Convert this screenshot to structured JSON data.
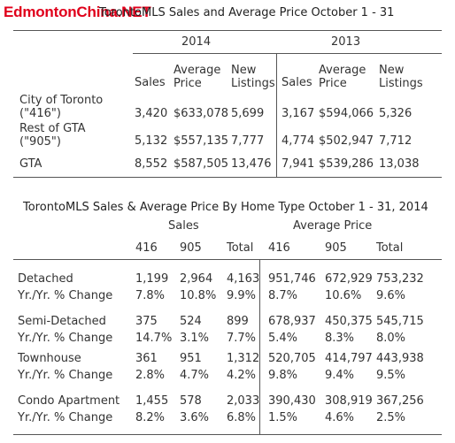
{
  "watermark": "EdmontonChina.NET",
  "table1": {
    "title": "TorontoMLS Sales and Average Price October 1 - 31",
    "years": [
      "2014",
      "2013"
    ],
    "col_headers": {
      "sales": "Sales",
      "avg_price": "Average\nPrice",
      "new_listings": "New\nListings"
    },
    "rows": [
      {
        "label": "City of Toronto\n(\"416\")",
        "y2014": [
          "3,420",
          "$633,078",
          "5,699"
        ],
        "y2013": [
          "3,167",
          "$594,066",
          "5,326"
        ]
      },
      {
        "label": "Rest of GTA\n(\"905\")",
        "y2014": [
          "5,132",
          "$557,135",
          "7,777"
        ],
        "y2013": [
          "4,774",
          "$502,947",
          "7,712"
        ]
      },
      {
        "label": "GTA",
        "y2014": [
          "8,552",
          "$587,505",
          "13,476"
        ],
        "y2013": [
          "7,941",
          "$539,286",
          "13,038"
        ]
      }
    ]
  },
  "table2": {
    "title": "TorontoMLS Sales & Average Price By Home Type October 1 - 31, 2014",
    "group_sales": "Sales",
    "group_price": "Average Price",
    "subheaders": [
      "416",
      "905",
      "Total",
      "416",
      "905",
      "Total"
    ],
    "rows": [
      {
        "label": "Detached",
        "values": [
          "1,199",
          "2,964",
          "4,163",
          "951,746",
          "672,929",
          "753,232"
        ]
      },
      {
        "label": "Yr./Yr. % Change",
        "values": [
          "7.8%",
          "10.8%",
          "9.9%",
          "8.7%",
          "10.6%",
          "9.6%"
        ]
      },
      {
        "label": "Semi-Detached",
        "values": [
          "375",
          "524",
          "899",
          "678,937",
          "450,375",
          "545,715"
        ]
      },
      {
        "label": "Yr./Yr. % Change",
        "values": [
          "14.7%",
          "3.1%",
          "7.7%",
          "5.4%",
          "8.3%",
          "8.0%"
        ]
      },
      {
        "label": "Townhouse",
        "values": [
          "361",
          "951",
          "1,312",
          "520,705",
          "414,797",
          "443,938"
        ]
      },
      {
        "label": "Yr./Yr. % Change",
        "values": [
          "2.8%",
          "4.7%",
          "4.2%",
          "9.8%",
          "9.4%",
          "9.5%"
        ]
      },
      {
        "label": "Condo Apartment",
        "values": [
          "1,455",
          "578",
          "2,033",
          "390,430",
          "308,919",
          "367,256"
        ]
      },
      {
        "label": "Yr./Yr. % Change",
        "values": [
          "8.2%",
          "3.6%",
          "6.8%",
          "1.5%",
          "4.6%",
          "2.5%"
        ]
      }
    ]
  }
}
